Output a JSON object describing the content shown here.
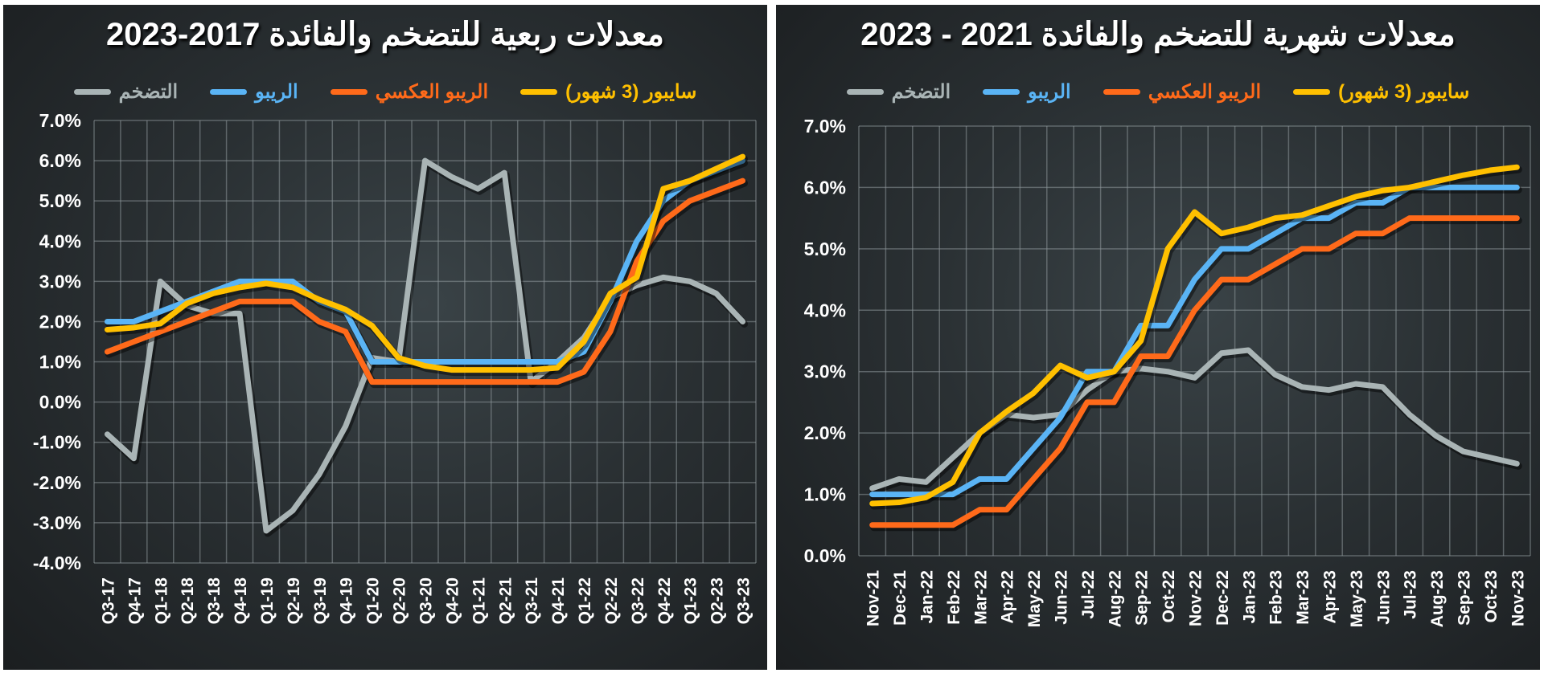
{
  "left_chart": {
    "title": "معدلات ربعية للتضخم والفائدة 2017-2023",
    "legend": [
      {
        "label": "سايبور (3 شهور)",
        "color": "#ffc000"
      },
      {
        "label": "الريبو العكسي",
        "color": "#ff6a1a"
      },
      {
        "label": "الريبو",
        "color": "#5ab4f5"
      },
      {
        "label": "التضخم",
        "color": "#a9b4b5"
      }
    ]
  },
  "right_chart": {
    "title": "معدلات شهرية للتضخم والفائدة 2021 - 2023",
    "legend": [
      {
        "label": "سايبور (3 شهور)",
        "color": "#ffc000"
      },
      {
        "label": "الريبو العكسي",
        "color": "#ff6a1a"
      },
      {
        "label": "الريبو",
        "color": "#5ab4f5"
      },
      {
        "label": "التضخم",
        "color": "#a9b4b5"
      }
    ]
  },
  "chart_data": [
    {
      "type": "line",
      "title": "معدلات ربعية للتضخم والفائدة 2017-2023",
      "xlabel": "",
      "ylabel": "",
      "ylim": [
        -4.0,
        7.0
      ],
      "yticks": [
        "7.0%",
        "6.0%",
        "5.0%",
        "4.0%",
        "3.0%",
        "2.0%",
        "1.0%",
        "0.0%",
        "-1.0%",
        "-2.0%",
        "-3.0%",
        "-4.0%"
      ],
      "grid": true,
      "legend_position": "top",
      "categories": [
        "Q3-17",
        "Q4-17",
        "Q1-18",
        "Q2-18",
        "Q3-18",
        "Q4-18",
        "Q1-19",
        "Q2-19",
        "Q3-19",
        "Q4-19",
        "Q1-20",
        "Q2-20",
        "Q3-20",
        "Q4-20",
        "Q1-21",
        "Q2-21",
        "Q3-21",
        "Q4-21",
        "Q1-22",
        "Q2-22",
        "Q3-22",
        "Q4-22",
        "Q1-23",
        "Q2-23",
        "Q3-23"
      ],
      "series": [
        {
          "name": "التضخم",
          "color": "#a9b4b5",
          "values": [
            -0.8,
            -1.4,
            3.0,
            2.4,
            2.2,
            2.2,
            -3.2,
            -2.7,
            -1.8,
            -0.6,
            1.1,
            1.0,
            6.0,
            5.6,
            5.3,
            5.7,
            0.5,
            1.0,
            1.6,
            2.6,
            2.9,
            3.1,
            3.0,
            2.7,
            2.0
          ]
        },
        {
          "name": "الريبو",
          "color": "#5ab4f5",
          "values": [
            2.0,
            2.0,
            2.25,
            2.5,
            2.75,
            3.0,
            3.0,
            3.0,
            2.5,
            2.25,
            1.0,
            1.0,
            1.0,
            1.0,
            1.0,
            1.0,
            1.0,
            1.0,
            1.25,
            2.5,
            4.0,
            5.0,
            5.5,
            5.75,
            6.0
          ]
        },
        {
          "name": "الريبو العكسي",
          "color": "#ff6a1a",
          "values": [
            1.25,
            1.5,
            1.75,
            2.0,
            2.25,
            2.5,
            2.5,
            2.5,
            2.0,
            1.75,
            0.5,
            0.5,
            0.5,
            0.5,
            0.5,
            0.5,
            0.5,
            0.5,
            0.75,
            1.75,
            3.5,
            4.5,
            5.0,
            5.25,
            5.5
          ]
        },
        {
          "name": "سايبور (3 شهور)",
          "color": "#ffc000",
          "values": [
            1.8,
            1.85,
            1.95,
            2.45,
            2.7,
            2.85,
            2.95,
            2.85,
            2.55,
            2.3,
            1.9,
            1.1,
            0.9,
            0.8,
            0.8,
            0.8,
            0.8,
            0.85,
            1.5,
            2.7,
            3.1,
            5.3,
            5.5,
            5.8,
            6.1
          ]
        }
      ]
    },
    {
      "type": "line",
      "title": "معدلات شهرية للتضخم والفائدة 2021 - 2023",
      "xlabel": "",
      "ylabel": "",
      "ylim": [
        0.0,
        7.0
      ],
      "yticks": [
        "7.0%",
        "6.0%",
        "5.0%",
        "4.0%",
        "3.0%",
        "2.0%",
        "1.0%",
        "0.0%"
      ],
      "grid": true,
      "legend_position": "top",
      "categories": [
        "Nov-21",
        "Dec-21",
        "Jan-22",
        "Feb-22",
        "Mar-22",
        "Apr-22",
        "May-22",
        "Jun-22",
        "Jul-22",
        "Aug-22",
        "Sep-22",
        "Oct-22",
        "Nov-22",
        "Dec-22",
        "Jan-23",
        "Feb-23",
        "Mar-23",
        "Apr-23",
        "May-23",
        "Jun-23",
        "Jul-23",
        "Aug-23",
        "Sep-23",
        "Oct-23",
        "Nov-23"
      ],
      "series": [
        {
          "name": "التضخم",
          "color": "#a9b4b5",
          "values": [
            1.1,
            1.25,
            1.2,
            1.6,
            2.0,
            2.3,
            2.25,
            2.3,
            2.7,
            3.0,
            3.05,
            3.0,
            2.9,
            3.3,
            3.35,
            2.95,
            2.75,
            2.7,
            2.8,
            2.75,
            2.3,
            1.95,
            1.7,
            1.6,
            1.5
          ]
        },
        {
          "name": "الريبو",
          "color": "#5ab4f5",
          "values": [
            1.0,
            1.0,
            1.0,
            1.0,
            1.25,
            1.25,
            1.75,
            2.25,
            3.0,
            3.0,
            3.75,
            3.75,
            4.5,
            5.0,
            5.0,
            5.25,
            5.5,
            5.5,
            5.75,
            5.75,
            6.0,
            6.0,
            6.0,
            6.0,
            6.0
          ]
        },
        {
          "name": "الريبو العكسي",
          "color": "#ff6a1a",
          "values": [
            0.5,
            0.5,
            0.5,
            0.5,
            0.75,
            0.75,
            1.25,
            1.75,
            2.5,
            2.5,
            3.25,
            3.25,
            4.0,
            4.5,
            4.5,
            4.75,
            5.0,
            5.0,
            5.25,
            5.25,
            5.5,
            5.5,
            5.5,
            5.5,
            5.5
          ]
        },
        {
          "name": "سايبور (3 شهور)",
          "color": "#ffc000",
          "values": [
            0.85,
            0.87,
            0.95,
            1.2,
            2.0,
            2.35,
            2.65,
            3.1,
            2.9,
            3.0,
            3.5,
            5.0,
            5.6,
            5.25,
            5.35,
            5.5,
            5.55,
            5.7,
            5.85,
            5.95,
            6.0,
            6.1,
            6.2,
            6.28,
            6.33
          ]
        }
      ]
    }
  ]
}
